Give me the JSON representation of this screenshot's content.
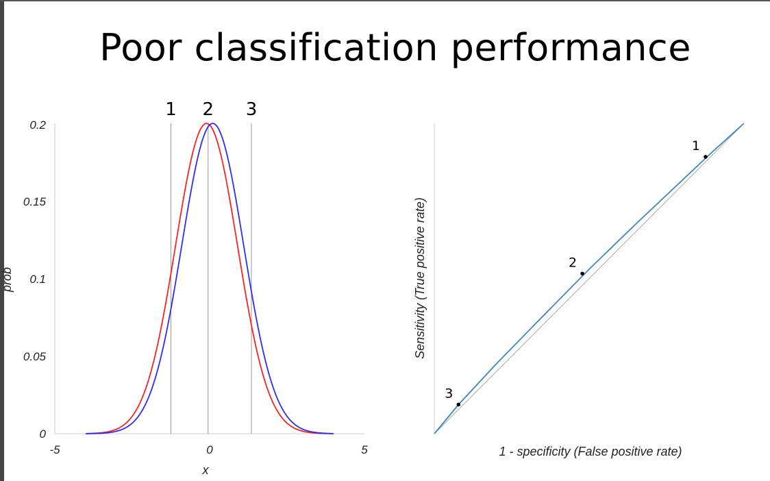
{
  "title": "Poor classification performance",
  "chart_data": [
    {
      "type": "line",
      "xlabel": "x",
      "ylabel": "prob",
      "xlim": [
        -5,
        5
      ],
      "ylim": [
        0,
        0.2
      ],
      "x_ticks": [
        "-5",
        "0",
        "5"
      ],
      "y_ticks": [
        "0",
        "0.05",
        "0.1",
        "0.15",
        "0.2"
      ],
      "series": [
        {
          "color": "#ff2020",
          "mean": -0.1,
          "sd": 1.0,
          "peak": 0.2,
          "x_range": [
            -4,
            4
          ]
        },
        {
          "color": "#2a2aff",
          "mean": 0.1,
          "sd": 1.0,
          "peak": 0.2,
          "x_range": [
            -4,
            4
          ]
        }
      ],
      "thresholds": [
        {
          "label": "1",
          "x": -1.25
        },
        {
          "label": "2",
          "x": -0.05
        },
        {
          "label": "3",
          "x": 1.35
        }
      ]
    },
    {
      "type": "line",
      "xlabel": "1 - specificity (False positive rate)",
      "ylabel": "Sensitivity (True positive rate)",
      "xlim": [
        0,
        1
      ],
      "ylim": [
        0,
        1
      ],
      "roc_curve": {
        "color": "#3a86c8",
        "x": [
          0,
          0.08,
          0.2,
          0.35,
          0.5,
          0.65,
          0.8,
          0.9,
          1.0
        ],
        "y": [
          0,
          0.096,
          0.225,
          0.378,
          0.53,
          0.675,
          0.816,
          0.91,
          1.0
        ]
      },
      "diagonal_color": "#aaaaaa",
      "points": [
        {
          "label": "1",
          "x": 0.876,
          "y": 0.892
        },
        {
          "label": "2",
          "x": 0.478,
          "y": 0.516
        },
        {
          "label": "3",
          "x": 0.078,
          "y": 0.094
        }
      ]
    }
  ]
}
